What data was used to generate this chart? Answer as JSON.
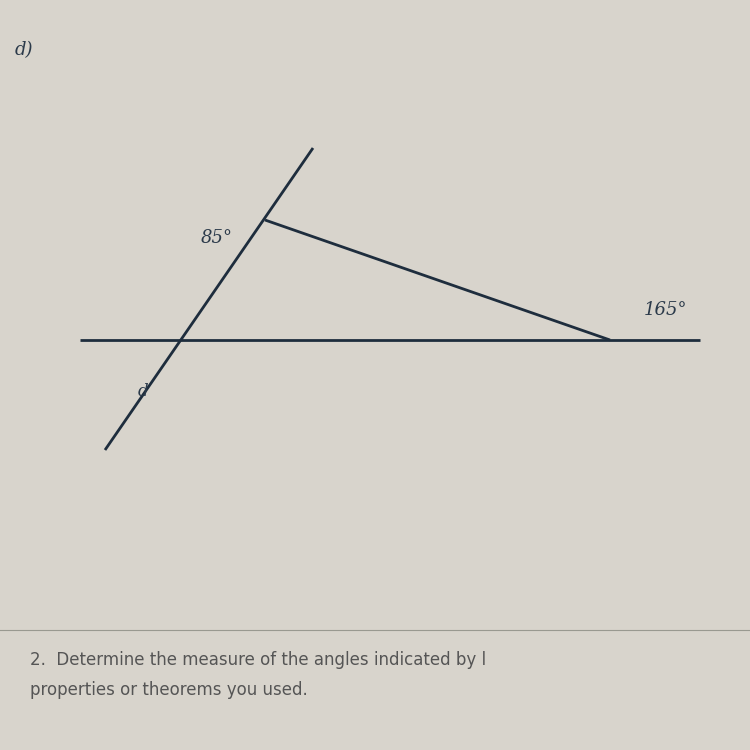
{
  "background_color": "#d8d4cc",
  "line_color": "#1e2d3d",
  "text_color": "#2b3a4a",
  "label_d": "d",
  "label_85": "85°",
  "label_165": "165°",
  "label_paren": "d)",
  "bottom_text_1": "2.  Determine the measure of the angles indicated by l",
  "bottom_text_2": "properties or theorems you used.",
  "font_size_angles": 13,
  "font_size_label": 12,
  "font_size_paren": 13,
  "font_size_bottom": 12
}
